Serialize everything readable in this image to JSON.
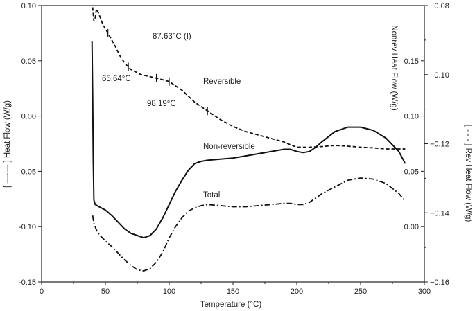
{
  "chart_data": {
    "type": "line",
    "xlabel": "Temperature (°C)",
    "x_ticks": [
      "0",
      "50",
      "100",
      "150",
      "200",
      "250",
      "300"
    ],
    "xlim": [
      0,
      300
    ],
    "left_axis": {
      "label": "[ —·— ] Heat Flow (W/g)",
      "ylim": [
        -0.15,
        0.1
      ],
      "ticks": [
        "0.10",
        "0.05",
        "0.00",
        "-0.05",
        "-0.10",
        "-0.15"
      ]
    },
    "right_axis_rev": {
      "label": "[ - - - ] Rev Heat Flow (W/g)",
      "ylim": [
        -0.16,
        -0.08
      ],
      "ticks": [
        "-0.08",
        "-0.10",
        "-0.12",
        "-0.14",
        "-0.16"
      ]
    },
    "right_axis_nonrev": {
      "label": "Nonrev Heat Flow (W/g)",
      "ticks": [
        {
          "label": "0.15",
          "left_equiv": 0.05
        },
        {
          "label": "0.10",
          "left_equiv": 0.0
        },
        {
          "label": "0.05",
          "left_equiv": -0.05
        },
        {
          "label": "0.00",
          "left_equiv": -0.1
        }
      ]
    },
    "series": [
      {
        "name": "Reversible",
        "axis": "rev",
        "style": "dashed",
        "x": [
          40,
          41,
          42,
          43,
          45,
          48,
          52,
          58,
          62,
          66,
          70,
          78,
          90,
          100,
          110,
          120,
          130,
          140,
          150,
          160,
          170,
          180,
          190,
          195,
          200,
          210,
          220,
          230,
          240,
          250,
          260,
          270,
          285
        ],
        "y": [
          -0.0805,
          -0.0845,
          -0.0835,
          -0.081,
          -0.0825,
          -0.0855,
          -0.088,
          -0.092,
          -0.095,
          -0.097,
          -0.0985,
          -0.1,
          -0.101,
          -0.102,
          -0.1045,
          -0.108,
          -0.1105,
          -0.113,
          -0.115,
          -0.1165,
          -0.1175,
          -0.1185,
          -0.1195,
          -0.1203,
          -0.121,
          -0.121,
          -0.1208,
          -0.1205,
          -0.1207,
          -0.121,
          -0.1212,
          -0.1215,
          -0.1215
        ]
      },
      {
        "name": "Non-reversible",
        "axis": "left",
        "style": "solid",
        "x": [
          39.5,
          40,
          40.5,
          41,
          42,
          45,
          50,
          55,
          60,
          65,
          70,
          75,
          80,
          85,
          90,
          95,
          100,
          105,
          110,
          115,
          120,
          125,
          130,
          140,
          150,
          160,
          170,
          180,
          190,
          195,
          200,
          205,
          210,
          215,
          220,
          230,
          240,
          250,
          260,
          270,
          280,
          285
        ],
        "y": [
          0.068,
          0.02,
          -0.04,
          -0.076,
          -0.08,
          -0.082,
          -0.085,
          -0.09,
          -0.096,
          -0.102,
          -0.106,
          -0.108,
          -0.11,
          -0.108,
          -0.102,
          -0.092,
          -0.08,
          -0.068,
          -0.058,
          -0.049,
          -0.043,
          -0.041,
          -0.04,
          -0.039,
          -0.038,
          -0.036,
          -0.034,
          -0.032,
          -0.03,
          -0.03,
          -0.032,
          -0.033,
          -0.032,
          -0.028,
          -0.023,
          -0.014,
          -0.01,
          -0.01,
          -0.013,
          -0.02,
          -0.032,
          -0.043
        ]
      },
      {
        "name": "Total",
        "axis": "left",
        "style": "dashdot",
        "x": [
          40,
          41,
          43,
          45,
          50,
          55,
          60,
          65,
          70,
          75,
          80,
          85,
          90,
          95,
          100,
          105,
          110,
          115,
          120,
          125,
          130,
          140,
          150,
          160,
          170,
          180,
          190,
          195,
          200,
          205,
          210,
          215,
          220,
          230,
          240,
          250,
          260,
          270,
          280,
          285
        ],
        "y": [
          -0.09,
          -0.097,
          -0.103,
          -0.107,
          -0.113,
          -0.118,
          -0.124,
          -0.13,
          -0.135,
          -0.139,
          -0.14,
          -0.138,
          -0.132,
          -0.123,
          -0.11,
          -0.1,
          -0.092,
          -0.086,
          -0.083,
          -0.081,
          -0.08,
          -0.081,
          -0.082,
          -0.082,
          -0.081,
          -0.08,
          -0.079,
          -0.079,
          -0.08,
          -0.08,
          -0.078,
          -0.074,
          -0.07,
          -0.064,
          -0.058,
          -0.056,
          -0.057,
          -0.061,
          -0.07,
          -0.077
        ]
      }
    ],
    "annotations": [
      {
        "text": "87.63°C (I)",
        "x": 87.63
      },
      {
        "text": "65.64°C",
        "x": 65.64
      },
      {
        "text": "98.19°C",
        "x": 98.19
      },
      {
        "text": "Reversible"
      },
      {
        "text": "Non-reversible"
      },
      {
        "text": "Total"
      }
    ],
    "markers_x": [
      52,
      68,
      90,
      100,
      130
    ],
    "grid": false
  }
}
